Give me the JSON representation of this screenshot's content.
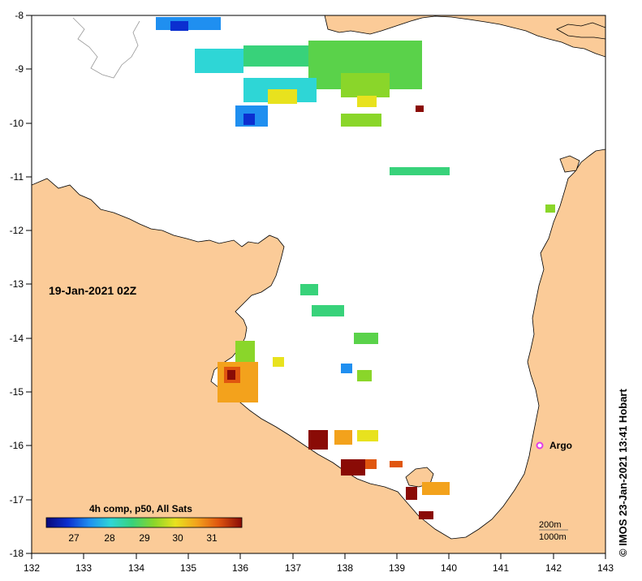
{
  "map": {
    "timestamp": "19-Jan-2021 02Z",
    "credit": "© IMOS 23-Jan-2021 13:41 Hobart",
    "lon_ticks": [
      "132",
      "133",
      "134",
      "135",
      "136",
      "137",
      "138",
      "139",
      "140",
      "141",
      "142",
      "143"
    ],
    "lat_ticks": [
      "-8",
      "-9",
      "-10",
      "-11",
      "-12",
      "-13",
      "-14",
      "-15",
      "-16",
      "-17",
      "-18"
    ],
    "lon_range": [
      132,
      143
    ],
    "lat_range": [
      -8,
      -18
    ],
    "colors": {
      "land": "#fbcb98",
      "sea": "#ffffff",
      "coast": "#000000",
      "argo": "#e23be6"
    },
    "legend": {
      "title": "4h comp, p50, All Sats",
      "ticks": [
        "27",
        "28",
        "29",
        "30",
        "31"
      ],
      "min": 26.2,
      "max": 32.0,
      "stops": [
        "#08087a",
        "#0b2fd0",
        "#1f8ff0",
        "#2ed6d6",
        "#38d27a",
        "#8ad62a",
        "#e8e21e",
        "#f3a21c",
        "#e0560f",
        "#8a0b06"
      ]
    },
    "argo": {
      "label": "Argo",
      "lon": 141.7,
      "lat": -16.0
    },
    "contours": {
      "c200": "200m",
      "c1000": "1000m"
    }
  }
}
